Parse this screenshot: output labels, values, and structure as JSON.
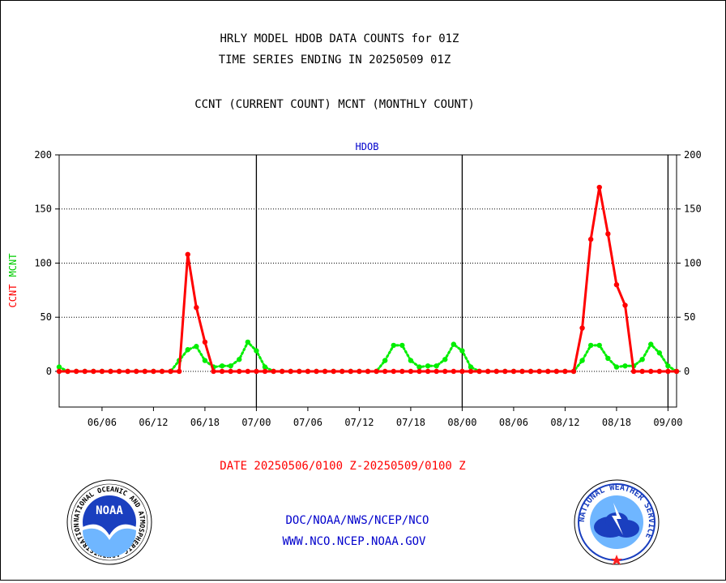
{
  "header": {
    "title_line1": "HRLY MODEL HDOB DATA COUNTS for 01Z",
    "title_line2": "TIME SERIES ENDING IN 20250509 01Z",
    "title_line3": "CCNT (CURRENT COUNT) MCNT (MONTHLY COUNT)"
  },
  "footer": {
    "date_range": "DATE 20250506/0100 Z-20250509/0100 Z",
    "agency_path": "DOC/NOAA/NWS/NCEP/NCO",
    "website": "WWW.NCO.NCEP.NOAA.GOV"
  },
  "logos": {
    "noaa_wordmark": "NOAA",
    "noaa_ring_text": "NATIONAL OCEANIC AND ATMOSPHERIC ADMINISTRATION · U.S. DEPARTMENT OF COMMERCE ·",
    "nws_ring_text": "NATIONAL WEATHER SERVICE"
  },
  "colors": {
    "ccnt": "#ff0000",
    "mcnt": "#00ee00",
    "panel_label": "#0000cc",
    "axis": "#000000"
  },
  "chart_data": {
    "type": "line",
    "panel_label": "HDOB",
    "ylabel_left": [
      "CCNT",
      "MCNT"
    ],
    "ylim": [
      -33,
      200
    ],
    "yticks": [
      0,
      50,
      100,
      150,
      200
    ],
    "grid": true,
    "x_unit": "hours since 2025-05-06 01Z",
    "xlim": [
      0,
      72
    ],
    "xticks": [
      {
        "x": 5,
        "label": "06/06"
      },
      {
        "x": 11,
        "label": "06/12"
      },
      {
        "x": 17,
        "label": "06/18"
      },
      {
        "x": 23,
        "label": "07/00"
      },
      {
        "x": 29,
        "label": "07/06"
      },
      {
        "x": 35,
        "label": "07/12"
      },
      {
        "x": 41,
        "label": "07/18"
      },
      {
        "x": 47,
        "label": "08/00"
      },
      {
        "x": 53,
        "label": "08/06"
      },
      {
        "x": 59,
        "label": "08/12"
      },
      {
        "x": 65,
        "label": "08/18"
      },
      {
        "x": 71,
        "label": "09/00"
      }
    ],
    "day_boundaries": [
      23,
      47,
      71
    ],
    "series": [
      {
        "name": "CCNT",
        "color": "#ff0000",
        "values": [
          0,
          0,
          0,
          0,
          0,
          0,
          0,
          0,
          0,
          0,
          0,
          0,
          0,
          0,
          0,
          108,
          59,
          27,
          0,
          0,
          0,
          0,
          0,
          0,
          0,
          0,
          0,
          0,
          0,
          0,
          0,
          0,
          0,
          0,
          0,
          0,
          0,
          0,
          0,
          0,
          0,
          0,
          0,
          0,
          0,
          0,
          0,
          0,
          0,
          0,
          0,
          0,
          0,
          0,
          0,
          0,
          0,
          0,
          0,
          0,
          0,
          40,
          122,
          170,
          127,
          80,
          61,
          0,
          0,
          0,
          0,
          0,
          0
        ]
      },
      {
        "name": "MCNT",
        "color": "#00ee00",
        "values": [
          4,
          0,
          0,
          0,
          0,
          0,
          0,
          0,
          0,
          0,
          0,
          0,
          0,
          0,
          10,
          20,
          23,
          10,
          4,
          5,
          5,
          11,
          27,
          19,
          4,
          0,
          0,
          0,
          0,
          0,
          0,
          0,
          0,
          0,
          0,
          0,
          0,
          0,
          10,
          24,
          24,
          10,
          4,
          5,
          5,
          11,
          25,
          19,
          4,
          0,
          0,
          0,
          0,
          0,
          0,
          0,
          0,
          0,
          0,
          0,
          0,
          10,
          24,
          24,
          12,
          4,
          5,
          5,
          11,
          25,
          17,
          5,
          0
        ]
      }
    ]
  }
}
